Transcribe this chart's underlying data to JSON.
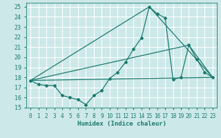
{
  "xlabel": "Humidex (Indice chaleur)",
  "xlim": [
    -0.5,
    23.5
  ],
  "ylim": [
    15,
    25.4
  ],
  "yticks": [
    15,
    16,
    17,
    18,
    19,
    20,
    21,
    22,
    23,
    24,
    25
  ],
  "xticks": [
    0,
    1,
    2,
    3,
    4,
    5,
    6,
    7,
    8,
    9,
    10,
    11,
    12,
    13,
    14,
    15,
    16,
    17,
    18,
    19,
    20,
    21,
    22,
    23
  ],
  "background_color": "#cce8e8",
  "grid_color": "#ffffff",
  "line_color": "#1a7a6e",
  "series": [
    {
      "x": [
        0,
        1,
        2,
        3,
        4,
        5,
        6,
        7,
        8,
        9,
        10,
        11,
        12,
        13,
        14,
        15,
        16,
        17,
        18,
        19,
        20,
        21,
        22,
        23
      ],
      "y": [
        17.7,
        17.3,
        17.2,
        17.2,
        16.2,
        16.0,
        15.8,
        15.3,
        16.2,
        16.7,
        17.9,
        18.5,
        19.5,
        20.8,
        21.9,
        25.0,
        24.3,
        23.9,
        17.8,
        18.0,
        21.2,
        19.8,
        18.5,
        18.0
      ]
    },
    {
      "x": [
        0,
        15,
        23
      ],
      "y": [
        17.7,
        25.0,
        18.0
      ]
    },
    {
      "x": [
        0,
        20,
        23
      ],
      "y": [
        17.7,
        21.2,
        18.0
      ]
    },
    {
      "x": [
        0,
        23
      ],
      "y": [
        17.7,
        18.0
      ]
    }
  ]
}
